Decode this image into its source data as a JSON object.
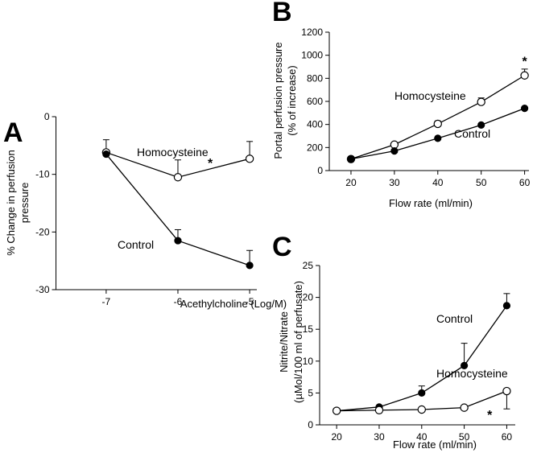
{
  "chart_data": [
    {
      "panel": "A",
      "type": "line",
      "xlabel": "Acethylcholine  (Log/M)",
      "ylabel_lines": [
        "% Change in perfusion",
        "pressure"
      ],
      "x_ticks": [
        -7,
        -6,
        -5
      ],
      "y_ticks": [
        0,
        -10,
        -20,
        -30
      ],
      "xlim": [
        -7.7,
        -4.9
      ],
      "ylim": [
        -30,
        0
      ],
      "series": [
        {
          "name": "Homocysteine",
          "marker": "open",
          "x": [
            -7,
            -6,
            -5
          ],
          "y": [
            -6.2,
            -10.5,
            -7.3
          ],
          "err": [
            2.2,
            3.0,
            3.0
          ],
          "err_dir": "up"
        },
        {
          "name": "Control",
          "marker": "filled",
          "x": [
            -7,
            -6,
            -5
          ],
          "y": [
            -6.5,
            -21.5,
            -25.8
          ],
          "err": [
            0,
            1.9,
            2.6
          ],
          "err_dir": "up"
        }
      ],
      "annotations": [
        {
          "text": "*",
          "x": -5.55,
          "y": -8.8
        }
      ]
    },
    {
      "panel": "B",
      "type": "line",
      "xlabel": "Flow rate (ml/min)",
      "ylabel_lines": [
        "Portal perfusion pressure",
        "(% of increase)"
      ],
      "x_ticks": [
        20,
        30,
        40,
        50,
        60
      ],
      "y_ticks": [
        0,
        200,
        400,
        600,
        800,
        1000,
        1200
      ],
      "xlim": [
        15,
        61
      ],
      "ylim": [
        0,
        1200
      ],
      "series": [
        {
          "name": "Homocysteine",
          "marker": "open",
          "x": [
            20,
            30,
            40,
            50,
            60
          ],
          "y": [
            100,
            225,
            405,
            595,
            825
          ],
          "err": [
            0,
            15,
            25,
            35,
            55
          ],
          "err_dir": "up"
        },
        {
          "name": "Control",
          "marker": "filled",
          "x": [
            20,
            30,
            40,
            50,
            60
          ],
          "y": [
            100,
            170,
            280,
            395,
            540
          ],
          "err": [
            0,
            0,
            0,
            0,
            0
          ],
          "err_dir": "up"
        }
      ],
      "annotations": [
        {
          "text": "*",
          "x": 60,
          "y": 910
        }
      ]
    },
    {
      "panel": "C",
      "type": "line",
      "xlabel": "Flow rate (ml/min)",
      "ylabel_lines": [
        "Nitrite/Nitrate",
        "(µMol/100 ml of perfusate)"
      ],
      "x_ticks": [
        20,
        30,
        40,
        50,
        60
      ],
      "y_ticks": [
        0,
        5,
        10,
        15,
        20,
        25
      ],
      "xlim": [
        16,
        62
      ],
      "ylim": [
        0,
        25
      ],
      "series": [
        {
          "name": "Control",
          "marker": "filled",
          "x": [
            20,
            30,
            40,
            50,
            60
          ],
          "y": [
            2.2,
            2.8,
            5.0,
            9.3,
            18.7
          ],
          "err": [
            0,
            0,
            1.1,
            3.5,
            1.9
          ],
          "err_dir": "up"
        },
        {
          "name": "Homocysteine",
          "marker": "open",
          "x": [
            20,
            30,
            40,
            50,
            60
          ],
          "y": [
            2.2,
            2.3,
            2.4,
            2.7,
            5.3
          ],
          "err": [
            0,
            0,
            0,
            0,
            2.8
          ],
          "err_dir": "down"
        }
      ],
      "annotations": [
        {
          "text": "*",
          "x": 56,
          "y": 0.9
        }
      ]
    }
  ]
}
